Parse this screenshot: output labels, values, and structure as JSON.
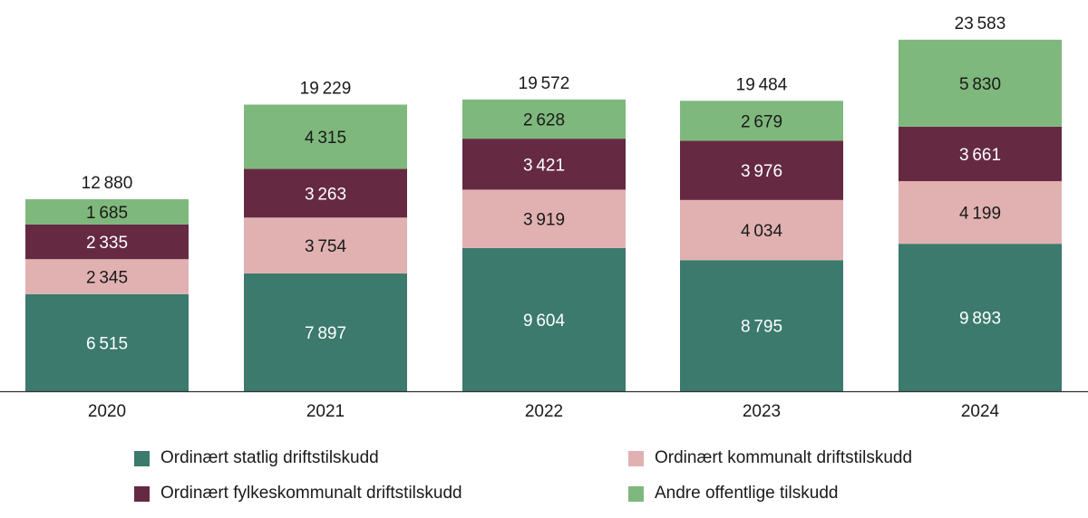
{
  "chart_data": {
    "type": "bar",
    "stacked": true,
    "title": "",
    "xlabel": "",
    "ylabel": "",
    "categories": [
      "2020",
      "2021",
      "2022",
      "2023",
      "2024"
    ],
    "ylim": [
      0,
      24000
    ],
    "grid": false,
    "legend_placement": "bottom",
    "series": [
      {
        "name": "Ordinært statlig driftstilskudd",
        "color": "#3b7a6d",
        "values": [
          6515,
          7897,
          9604,
          8795,
          9893
        ]
      },
      {
        "name": "Ordinært kommunalt driftstilskudd",
        "color": "#e1b1b1",
        "values": [
          2345,
          3754,
          3919,
          4034,
          4199
        ]
      },
      {
        "name": "Ordinært fylkeskommunalt driftstilskudd",
        "color": "#652a42",
        "values": [
          2335,
          3263,
          3421,
          3976,
          3661
        ]
      },
      {
        "name": "Andre offentlige tilskudd",
        "color": "#7fb87c",
        "values": [
          1685,
          4315,
          2628,
          2679,
          5830
        ]
      }
    ],
    "totals": [
      12880,
      19229,
      19572,
      19484,
      23583
    ],
    "label_colors": {
      "#3b7a6d": "#ffffff",
      "#e1b1b1": "#1a1a1a",
      "#652a42": "#ffffff",
      "#7fb87c": "#1a1a1a"
    }
  }
}
